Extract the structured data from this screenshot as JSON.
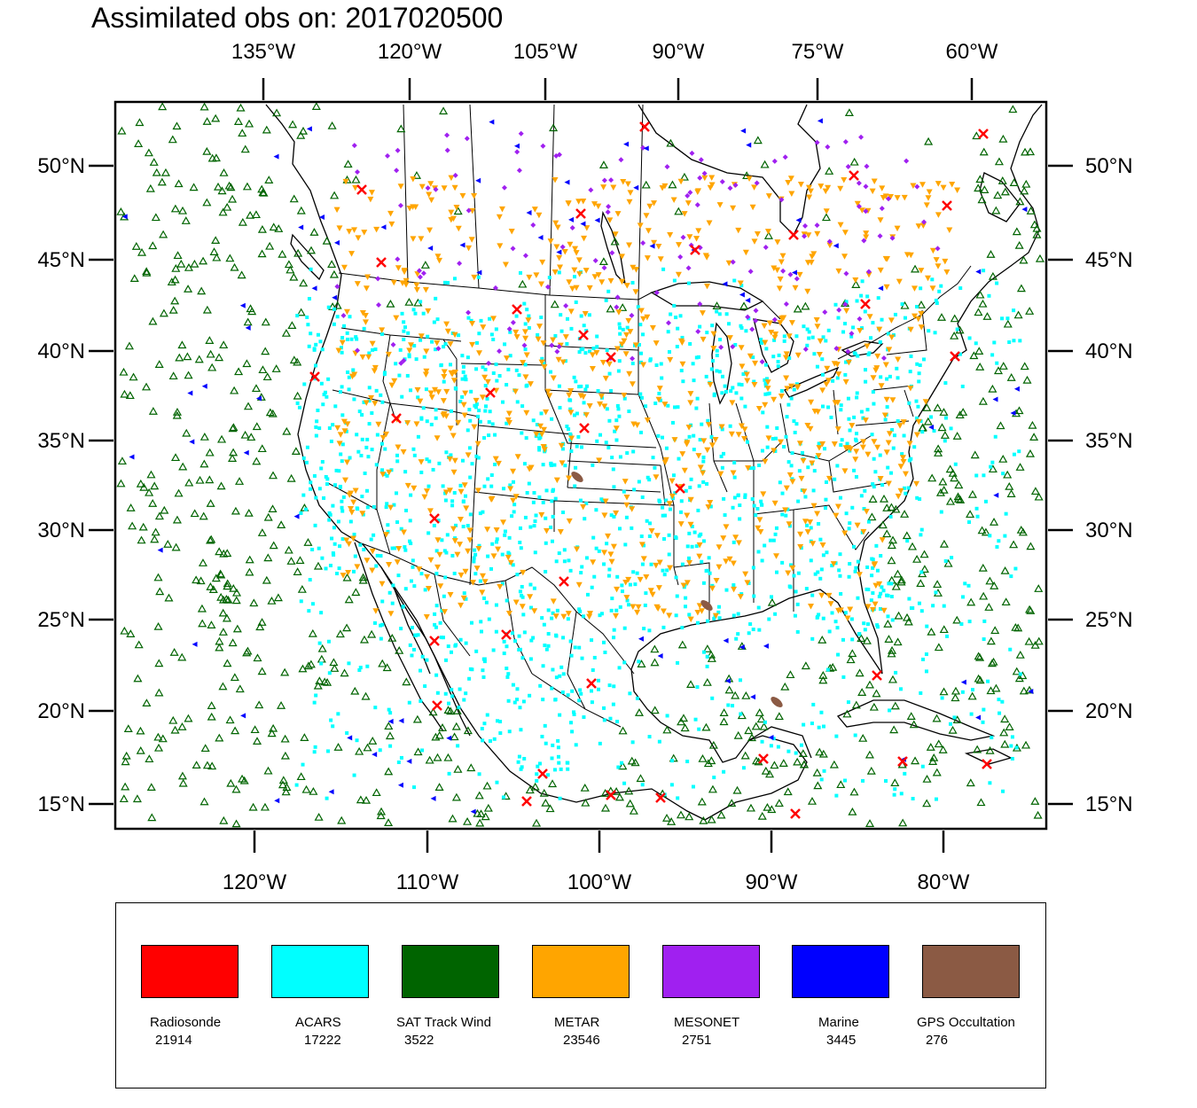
{
  "title": "Assimilated obs on: 2017020500",
  "map": {
    "top_lon_labels": [
      "135°W",
      "120°W",
      "105°W",
      "90°W",
      "75°W",
      "60°W"
    ],
    "bottom_lon_labels": [
      "120°W",
      "110°W",
      "100°W",
      "90°W",
      "80°W"
    ],
    "lat_labels": [
      "50°N",
      "45°N",
      "40°N",
      "35°N",
      "30°N",
      "25°N",
      "20°N",
      "15°N"
    ]
  },
  "legend": {
    "items": [
      {
        "name": "Radiosonde",
        "count": "21914",
        "color": "#ff0000"
      },
      {
        "name": "ACARS",
        "count": "17222",
        "color": "#00ffff"
      },
      {
        "name": "SAT Track Wind",
        "count": "3522",
        "color": "#006400"
      },
      {
        "name": "METAR",
        "count": "23546",
        "color": "#ffa500"
      },
      {
        "name": "MESONET",
        "count": "2751",
        "color": "#a020f0"
      },
      {
        "name": "Marine",
        "count": "3445",
        "color": "#0000ff"
      },
      {
        "name": "GPS Occultation",
        "count": "276",
        "color": "#8b5a44"
      }
    ]
  }
}
